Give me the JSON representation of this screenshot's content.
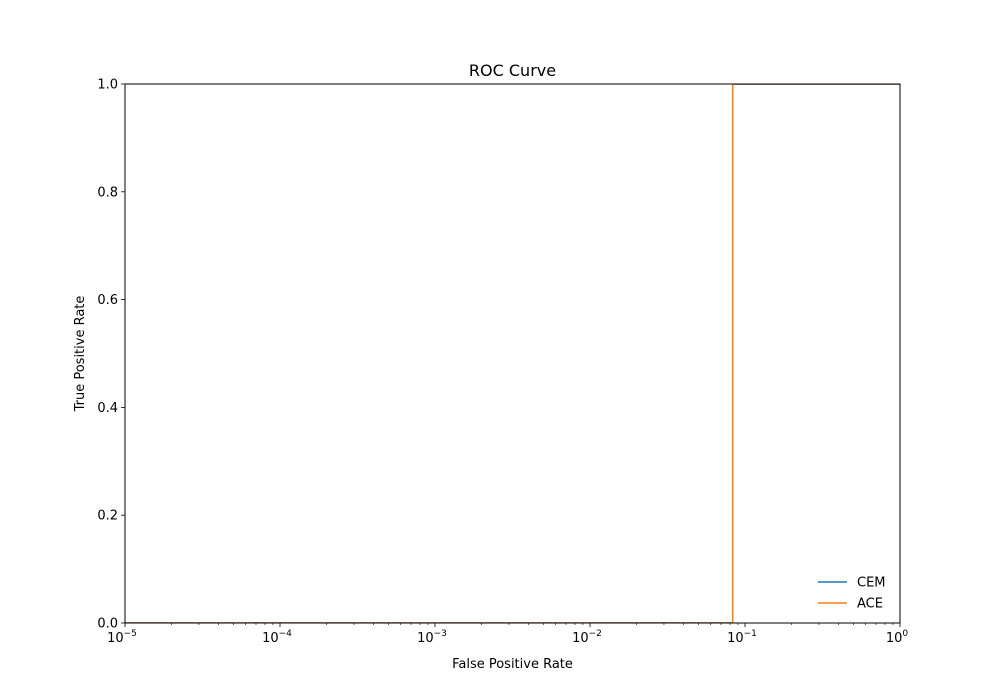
{
  "chart_data": {
    "type": "line",
    "title": "ROC Curve",
    "xlabel": "False Positive Rate",
    "ylabel": "True Positive Rate",
    "xscale": "log",
    "xlim": [
      1e-05,
      1
    ],
    "ylim": [
      0.0,
      1.0
    ],
    "grid": false,
    "legend_position": "lower right",
    "x_ticks": [
      {
        "value": 1e-05,
        "base": "10",
        "exp": "−5"
      },
      {
        "value": 0.0001,
        "base": "10",
        "exp": "−4"
      },
      {
        "value": 0.001,
        "base": "10",
        "exp": "−3"
      },
      {
        "value": 0.01,
        "base": "10",
        "exp": "−2"
      },
      {
        "value": 0.1,
        "base": "10",
        "exp": "−1"
      },
      {
        "value": 1,
        "base": "10",
        "exp": "0"
      }
    ],
    "y_ticks": [
      {
        "value": 0.0,
        "label": "0.0"
      },
      {
        "value": 0.2,
        "label": "0.2"
      },
      {
        "value": 0.4,
        "label": "0.4"
      },
      {
        "value": 0.6,
        "label": "0.6"
      },
      {
        "value": 0.8,
        "label": "0.8"
      },
      {
        "value": 1.0,
        "label": "1.0"
      }
    ],
    "series": [
      {
        "name": "CEM",
        "color": "#1f77b4",
        "x": [
          1e-05,
          0.0833,
          0.0833,
          1
        ],
        "y": [
          0.0,
          0.0,
          1.0,
          1.0
        ]
      },
      {
        "name": "ACE",
        "color": "#ff7f0e",
        "x": [
          1e-05,
          0.0833,
          0.0833,
          1
        ],
        "y": [
          0.0,
          0.0,
          1.0,
          1.0
        ]
      }
    ]
  }
}
